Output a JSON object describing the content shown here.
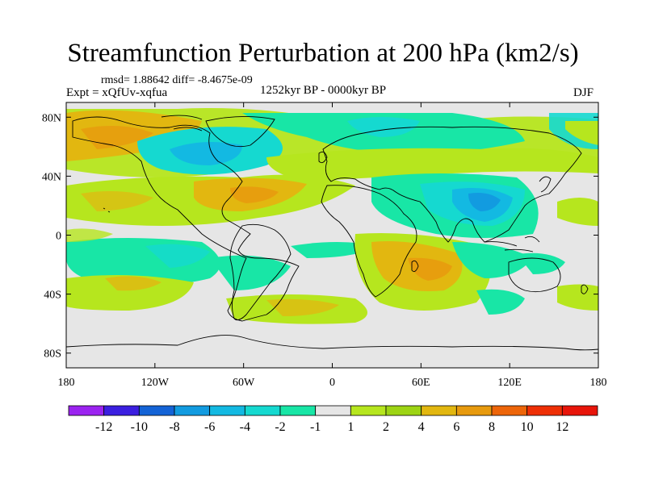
{
  "title": "Streamfunction Perturbation at 200 hPa (km2/s)",
  "stats_line": "rmsd= 1.88642 diff= -8.4675e-09",
  "experiment_label": "Expt = xQfUv-xqfua",
  "period_label": "1252kyr BP - 0000kyr BP",
  "season_label": "DJF",
  "chart_data": {
    "type": "heatmap",
    "projection": "cylindrical-equidistant",
    "units": "km2/s",
    "x_ticks": [
      "180",
      "120W",
      "60W",
      "0",
      "60E",
      "120E",
      "180"
    ],
    "y_ticks": [
      "80N",
      "40N",
      "0",
      "40S",
      "80S"
    ],
    "xlim": [
      -180,
      180
    ],
    "ylim": [
      -90,
      90
    ],
    "colorbar": {
      "labels": [
        "-12",
        "-10",
        "-8",
        "-6",
        "-4",
        "-2",
        "-1",
        "1",
        "2",
        "4",
        "6",
        "8",
        "10",
        "12"
      ],
      "colors": [
        "#9b23f0",
        "#3b1fe0",
        "#1463d6",
        "#129be0",
        "#13b9e2",
        "#15d9d0",
        "#18e6a6",
        "#e6e6e6",
        "#b6e61e",
        "#9dd414",
        "#e2b710",
        "#e79a0e",
        "#ed6509",
        "#ee2f05",
        "#e8150a"
      ]
    },
    "field_regions": [
      {
        "name": "arctic-pacific-positive",
        "lon": [
          -180,
          -110
        ],
        "lat": [
          55,
          88
        ],
        "value": 4
      },
      {
        "name": "arctic-atlantic-negative",
        "lon": [
          -100,
          -30
        ],
        "lat": [
          50,
          85
        ],
        "value": -4
      },
      {
        "name": "north-atlantic-positive",
        "lon": [
          -150,
          -20
        ],
        "lat": [
          20,
          45
        ],
        "value": 3
      },
      {
        "name": "eurasia-positive-band",
        "lon": [
          -40,
          100
        ],
        "lat": [
          40,
          60
        ],
        "value": 2
      },
      {
        "name": "siberia-negative",
        "lon": [
          0,
          80
        ],
        "lat": [
          65,
          85
        ],
        "value": -3
      },
      {
        "name": "asia-negative",
        "lon": [
          20,
          140
        ],
        "lat": [
          5,
          40
        ],
        "value": -6
      },
      {
        "name": "africa-positive",
        "lon": [
          10,
          100
        ],
        "lat": [
          -50,
          -5
        ],
        "value": 5
      },
      {
        "name": "south-pacific-negative",
        "lon": [
          -150,
          -70
        ],
        "lat": [
          -40,
          -5
        ],
        "value": -3
      },
      {
        "name": "southeast-pacific-positive",
        "lon": [
          -180,
          -70
        ],
        "lat": [
          -45,
          -20
        ],
        "value": 2
      },
      {
        "name": "southern-ocean-positive",
        "lon": [
          -100,
          180
        ],
        "lat": [
          -55,
          -40
        ],
        "value": 2
      },
      {
        "name": "south-australia-negative",
        "lon": [
          100,
          170
        ],
        "lat": [
          -45,
          -5
        ],
        "value": -2
      }
    ]
  }
}
